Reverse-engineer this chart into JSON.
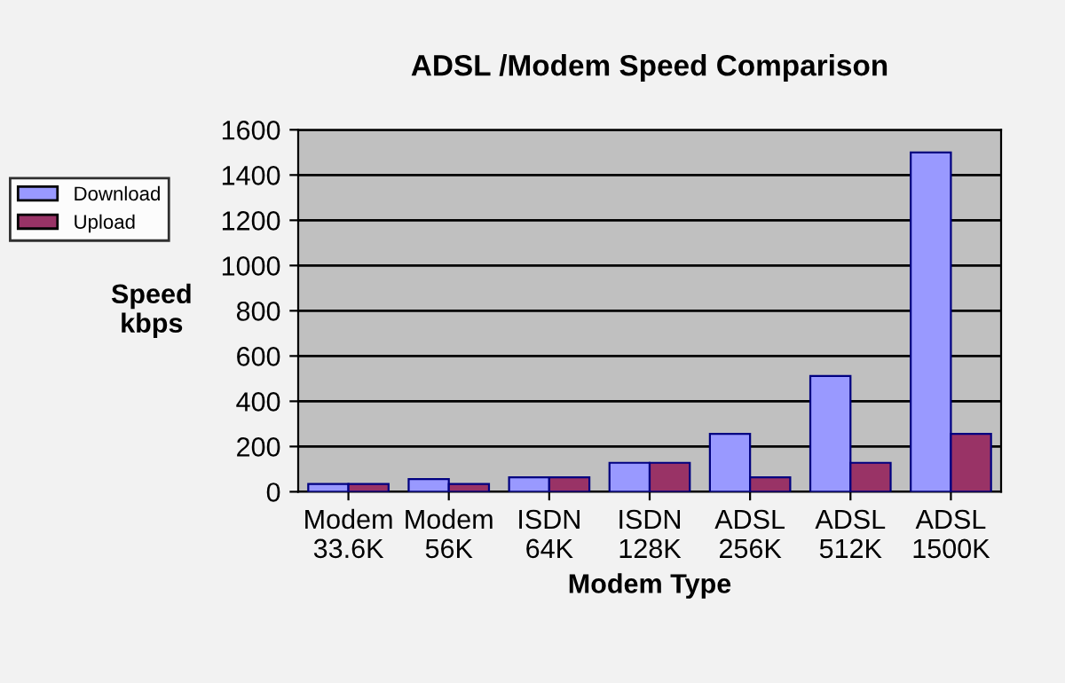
{
  "chart_data": {
    "type": "bar",
    "title": "ADSL /Modem Speed Comparison",
    "xlabel": "Modem Type",
    "ylabel": "Speed\nkbps",
    "categories": [
      "Modem\n33.6K",
      "Modem\n56K",
      "ISDN\n64K",
      "ISDN\n128K",
      "ADSL\n256K",
      "ADSL\n512K",
      "ADSL\n1500K"
    ],
    "series": [
      {
        "name": "Download",
        "color": "#9999ff",
        "values": [
          34,
          56,
          64,
          128,
          256,
          512,
          1500
        ]
      },
      {
        "name": "Upload",
        "color": "#993366",
        "values": [
          34,
          34,
          64,
          128,
          64,
          128,
          256
        ]
      }
    ],
    "ylim": [
      0,
      1600
    ],
    "yticks": [
      0,
      200,
      400,
      600,
      800,
      1000,
      1200,
      1400,
      1600
    ],
    "grid": "y",
    "legend": "left"
  }
}
